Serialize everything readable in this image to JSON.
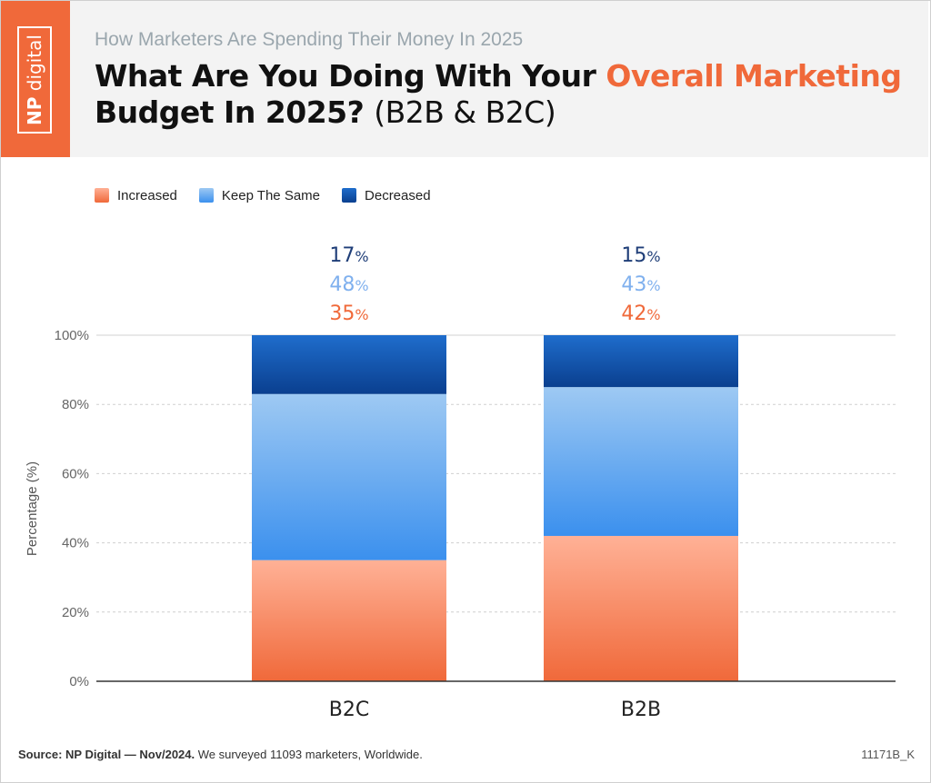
{
  "header": {
    "brand": {
      "np": "NP",
      "digital": "digital"
    },
    "subtitle": "How Marketers Are Spending Their Money In 2025",
    "title_part1": "What Are You Doing With Your ",
    "title_accent": "Overall Marketing",
    "title_part2": "Budget In 2025?",
    "title_paren": "(B2B & B2C)"
  },
  "colors": {
    "increased": "#f0693a",
    "keep": "#3b90ee",
    "decreased": "#0a3f8f",
    "label_increased": "#f0693a",
    "label_keep": "#7fb0ee",
    "label_decreased": "#1f3e78"
  },
  "chart_data": {
    "type": "bar",
    "stacked": true,
    "categories": [
      "B2C",
      "B2B"
    ],
    "series": [
      {
        "name": "Increased",
        "values": [
          35,
          42
        ]
      },
      {
        "name": "Keep The Same",
        "values": [
          48,
          43
        ]
      },
      {
        "name": "Decreased",
        "values": [
          17,
          15
        ]
      }
    ],
    "ylabel": "Percentage (%)",
    "ylim": [
      0,
      100
    ],
    "yticks": [
      "0%",
      "20%",
      "40%",
      "60%",
      "80%",
      "100%"
    ],
    "value_suffix": "%",
    "grid": true,
    "legend_position": "top-left"
  },
  "footer": {
    "source_label": "Source:",
    "source_name": "NP Digital — Nov/2024.",
    "source_text": " We surveyed 11093 marketers, Worldwide.",
    "code": "11171B_K"
  }
}
